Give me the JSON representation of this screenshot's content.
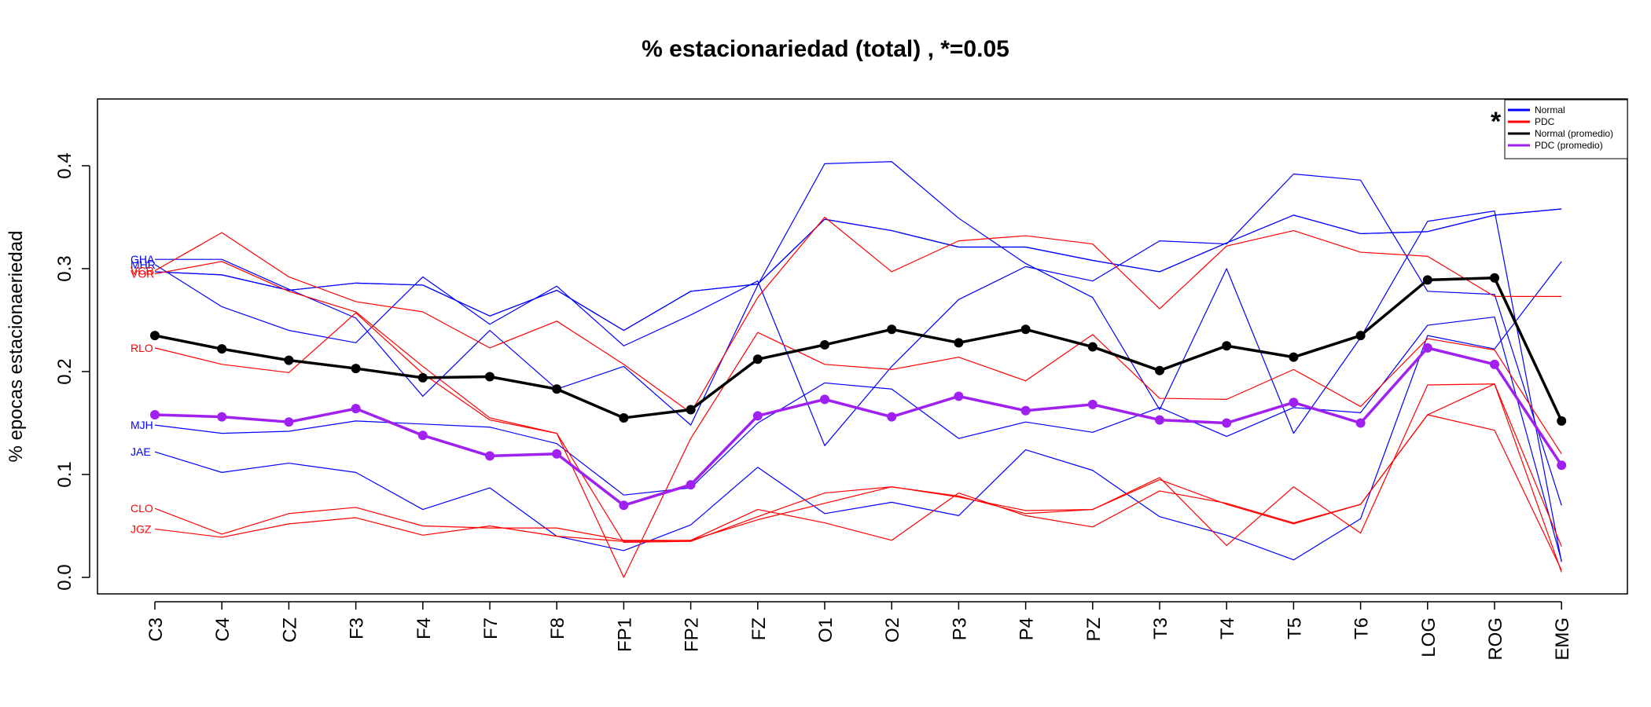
{
  "chart_data": {
    "type": "line",
    "title": "% estacionariedad (total) , *=0.05",
    "xlabel": "",
    "ylabel": "% epocas estacionaeriedad",
    "ylim": [
      -0.02,
      0.46
    ],
    "yticks": [
      0.0,
      0.1,
      0.2,
      0.3,
      0.4
    ],
    "ytick_labels": [
      "0.0",
      "0.1",
      "0.2",
      "0.3",
      "0.4"
    ],
    "categories": [
      "C3",
      "C4",
      "CZ",
      "F3",
      "F4",
      "F7",
      "F8",
      "FP1",
      "FP2",
      "FZ",
      "O1",
      "O2",
      "P3",
      "P4",
      "PZ",
      "T3",
      "T4",
      "T5",
      "T6",
      "LOG",
      "ROG",
      "EMG"
    ],
    "series": [
      {
        "label": "GHA",
        "group": "Normal",
        "values": [
          0.309,
          0.309,
          0.28,
          0.252,
          0.176,
          0.24,
          0.183,
          0.205,
          0.148,
          0.284,
          0.402,
          0.404,
          0.349,
          0.305,
          0.272,
          0.163,
          0.3,
          0.14,
          0.233,
          0.346,
          0.356,
          0.015
        ]
      },
      {
        "label": "MHR",
        "group": "Normal",
        "values": [
          0.304,
          0.263,
          0.24,
          0.228,
          0.292,
          0.246,
          0.283,
          0.225,
          0.255,
          0.288,
          0.128,
          0.205,
          0.27,
          0.302,
          0.288,
          0.327,
          0.324,
          0.392,
          0.386,
          0.278,
          0.275,
          0.07
        ]
      },
      {
        "label": "",
        "group": "Normal",
        "values": [
          0.297,
          0.294,
          0.279,
          0.286,
          0.284,
          0.254,
          0.279,
          0.24,
          0.278,
          0.285,
          0.348,
          0.337,
          0.321,
          0.321,
          0.308,
          0.297,
          0.325,
          0.352,
          0.334,
          0.336,
          0.352,
          0.358
        ]
      },
      {
        "label": "",
        "group": "Normal",
        "values": [
          0.297,
          0.294,
          0.279,
          0.286,
          0.284,
          0.254,
          0.279,
          0.24,
          0.278,
          0.285,
          0.348,
          0.337,
          0.321,
          0.321,
          0.308,
          0.297,
          0.325,
          0.352,
          0.334,
          0.336,
          0.352,
          0.358
        ]
      },
      {
        "label": "MJH",
        "group": "Normal",
        "values": [
          0.148,
          0.14,
          0.142,
          0.152,
          0.149,
          0.146,
          0.13,
          0.08,
          0.087,
          0.15,
          0.189,
          0.183,
          0.135,
          0.151,
          0.141,
          0.165,
          0.137,
          0.165,
          0.16,
          0.245,
          0.253,
          0.016
        ]
      },
      {
        "label": "JAE",
        "group": "Normal",
        "values": [
          0.122,
          0.102,
          0.111,
          0.102,
          0.066,
          0.087,
          0.04,
          0.026,
          0.051,
          0.107,
          0.062,
          0.073,
          0.06,
          0.124,
          0.104,
          0.059,
          0.041,
          0.017,
          0.057,
          0.235,
          0.222,
          0.307
        ]
      },
      {
        "label": "VCR",
        "group": "PDC",
        "values": [
          0.298,
          0.335,
          0.292,
          0.268,
          0.258,
          0.223,
          0.249,
          0.207,
          0.16,
          0.272,
          0.35,
          0.297,
          0.327,
          0.332,
          0.324,
          0.261,
          0.322,
          0.337,
          0.316,
          0.312,
          0.273,
          0.273
        ]
      },
      {
        "label": "VOR",
        "group": "PDC",
        "values": [
          0.295,
          0.307,
          0.278,
          0.258,
          0.205,
          0.155,
          0.14,
          0.0,
          0.135,
          0.238,
          0.207,
          0.202,
          0.214,
          0.191,
          0.236,
          0.174,
          0.173,
          0.202,
          0.166,
          0.232,
          0.221,
          0.12
        ]
      },
      {
        "label": "RLO",
        "group": "PDC",
        "values": [
          0.223,
          0.207,
          0.199,
          0.257,
          0.198,
          0.153,
          0.14,
          0.034,
          0.035,
          0.059,
          0.082,
          0.088,
          0.078,
          0.065,
          0.066,
          0.097,
          0.031,
          0.088,
          0.043,
          0.187,
          0.188,
          0.005
        ]
      },
      {
        "label": "CLO",
        "group": "PDC",
        "values": [
          0.067,
          0.042,
          0.062,
          0.068,
          0.05,
          0.048,
          0.048,
          0.036,
          0.036,
          0.066,
          0.053,
          0.036,
          0.082,
          0.06,
          0.049,
          0.084,
          0.072,
          0.053,
          0.071,
          0.158,
          0.143,
          0.007
        ]
      },
      {
        "label": "JGZ",
        "group": "PDC",
        "values": [
          0.047,
          0.039,
          0.052,
          0.058,
          0.041,
          0.05,
          0.04,
          0.035,
          0.036,
          0.056,
          0.072,
          0.088,
          0.079,
          0.062,
          0.066,
          0.095,
          0.071,
          0.052,
          0.071,
          0.158,
          0.188,
          0.03
        ]
      },
      {
        "name": "Normal (promedio)",
        "color": "#000000",
        "values": [
          0.235,
          0.222,
          0.211,
          0.203,
          0.194,
          0.195,
          0.183,
          0.155,
          0.163,
          0.212,
          0.226,
          0.241,
          0.228,
          0.241,
          0.224,
          0.201,
          0.225,
          0.214,
          0.235,
          0.289,
          0.291,
          0.152
        ]
      },
      {
        "name": "PDC (promedio)",
        "color": "#a020f0",
        "values": [
          0.158,
          0.156,
          0.151,
          0.164,
          0.138,
          0.118,
          0.12,
          0.07,
          0.09,
          0.157,
          0.173,
          0.156,
          0.176,
          0.162,
          0.168,
          0.153,
          0.15,
          0.17,
          0.15,
          0.223,
          0.207,
          0.109
        ]
      }
    ],
    "legend": {
      "position": "top-right",
      "entries": [
        {
          "label": "Normal",
          "color": "#0000ff"
        },
        {
          "label": "PDC",
          "color": "#ff0000"
        },
        {
          "label": "Normal (promedio)",
          "color": "#000000"
        },
        {
          "label": "PDC (promedio)",
          "color": "#a020f0"
        }
      ],
      "marker": "*"
    },
    "colors": {
      "Normal": "#0000ff",
      "PDC": "#ff0000",
      "normal_avg": "#000000",
      "pdc_avg": "#a020f0"
    }
  }
}
